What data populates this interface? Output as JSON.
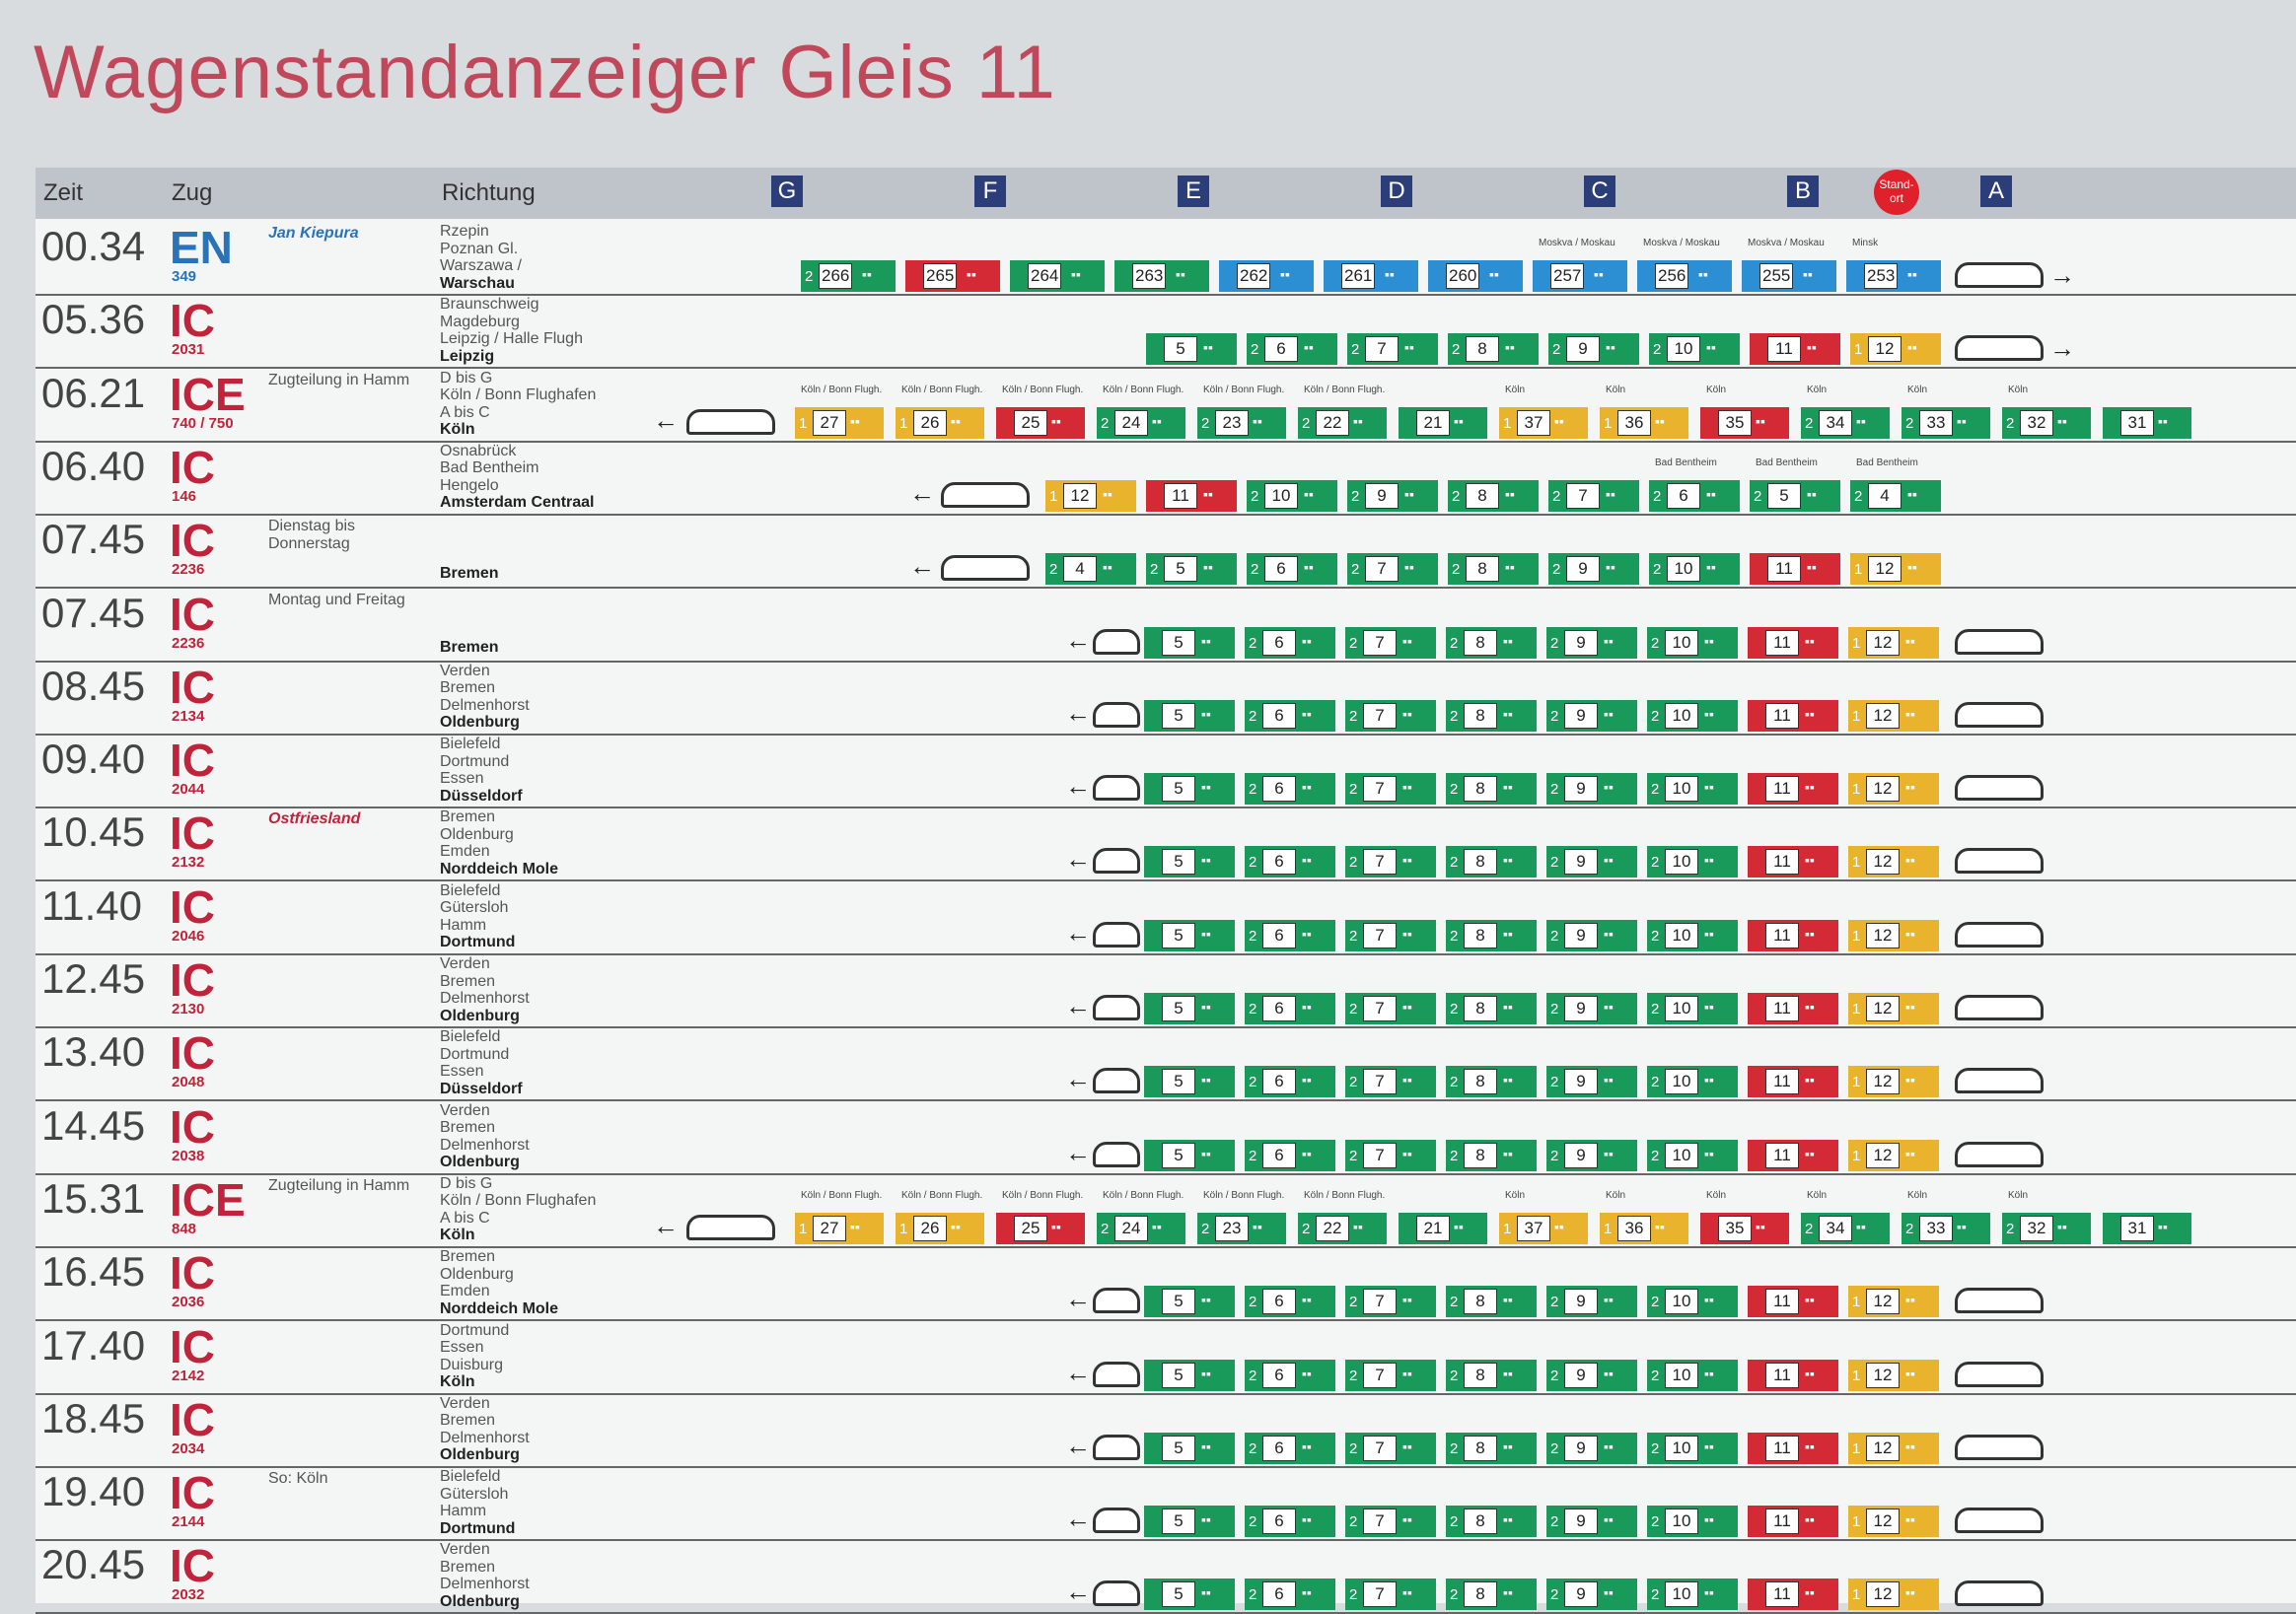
{
  "title": "Wagenstandanzeiger Gleis 11",
  "header": {
    "zeit": "Zeit",
    "zug": "Zug",
    "richtung": "Richtung",
    "standort": "Stand-ort"
  },
  "sectors": [
    "G",
    "F",
    "E",
    "D",
    "C",
    "B",
    "A"
  ],
  "colors": {
    "green": "#1a9a5a",
    "red": "#d42a35",
    "yellow": "#e9b32e",
    "blue": "#2c8ed3",
    "brand": "#c0233a"
  },
  "rows": [
    {
      "time": "00.34",
      "type": "EN",
      "num": "349",
      "note": "Jan Kiepura",
      "note_style": "italic",
      "stops": [
        "Rzepin",
        "Poznan Gl.",
        "Warszawa /",
        "Warschau"
      ],
      "dir": "right",
      "cars": [
        [
          "266",
          "g",
          "2",
          ""
        ],
        [
          "265",
          "r",
          "",
          ""
        ],
        [
          "264",
          "g",
          "",
          ""
        ],
        [
          "263",
          "g",
          "",
          ""
        ],
        [
          "262",
          "b",
          "",
          ""
        ],
        [
          "261",
          "b",
          "",
          ""
        ],
        [
          "260",
          "b",
          "",
          ""
        ],
        [
          "257",
          "b",
          "",
          "Moskva / Moskau"
        ],
        [
          "256",
          "b",
          "",
          "Moskva / Moskau"
        ],
        [
          "255",
          "b",
          "",
          "Moskva / Moskau"
        ],
        [
          "253",
          "b",
          "",
          "Minsk"
        ]
      ]
    },
    {
      "time": "05.36",
      "type": "IC",
      "num": "2031",
      "note": "",
      "stops": [
        "Braunschweig",
        "Magdeburg",
        "Leipzig / Halle Flugh",
        "Leipzig"
      ],
      "dir": "right",
      "cars": [
        [
          "5",
          "g",
          "",
          ""
        ],
        [
          "6",
          "g",
          "2",
          ""
        ],
        [
          "7",
          "g",
          "2",
          ""
        ],
        [
          "8",
          "g",
          "2",
          ""
        ],
        [
          "9",
          "g",
          "2",
          ""
        ],
        [
          "10",
          "g",
          "2",
          ""
        ],
        [
          "11",
          "r",
          "",
          ""
        ],
        [
          "12",
          "y",
          "1",
          ""
        ]
      ]
    },
    {
      "time": "06.21",
      "type": "ICE",
      "num": "740 / 750",
      "note": "Zugteilung in Hamm",
      "stops": [
        "D bis G",
        "Köln / Bonn Flughafen",
        "A bis C",
        "Köln"
      ],
      "dir": "left",
      "cars": [
        [
          "27",
          "y",
          "1",
          "Köln / Bonn Flugh."
        ],
        [
          "26",
          "y",
          "1",
          "Köln / Bonn Flugh."
        ],
        [
          "25",
          "r",
          "",
          "Köln / Bonn Flugh."
        ],
        [
          "24",
          "g",
          "2",
          "Köln / Bonn Flugh."
        ],
        [
          "23",
          "g",
          "2",
          "Köln / Bonn Flugh."
        ],
        [
          "22",
          "g",
          "2",
          "Köln / Bonn Flugh."
        ],
        [
          "21",
          "g",
          "",
          ""
        ],
        [
          "37",
          "y",
          "1",
          "Köln"
        ],
        [
          "36",
          "y",
          "1",
          "Köln"
        ],
        [
          "35",
          "r",
          "",
          "Köln"
        ],
        [
          "34",
          "g",
          "2",
          "Köln"
        ],
        [
          "33",
          "g",
          "2",
          "Köln"
        ],
        [
          "32",
          "g",
          "2",
          "Köln"
        ],
        [
          "31",
          "g",
          "",
          ""
        ]
      ]
    },
    {
      "time": "06.40",
      "type": "IC",
      "num": "146",
      "note": "",
      "stops": [
        "Osnabrück",
        "Bad Bentheim",
        "Hengelo",
        "Amsterdam Centraal"
      ],
      "dir": "left",
      "cars": [
        [
          "12",
          "y",
          "1",
          ""
        ],
        [
          "11",
          "r",
          "",
          ""
        ],
        [
          "10",
          "g",
          "2",
          ""
        ],
        [
          "9",
          "g",
          "2",
          ""
        ],
        [
          "8",
          "g",
          "2",
          ""
        ],
        [
          "7",
          "g",
          "2",
          ""
        ],
        [
          "6",
          "g",
          "2",
          "Bad Bentheim"
        ],
        [
          "5",
          "g",
          "2",
          "Bad Bentheim"
        ],
        [
          "4",
          "g",
          "2",
          "Bad Bentheim"
        ]
      ]
    },
    {
      "time": "07.45",
      "type": "IC",
      "num": "2236",
      "note": "Dienstag bis Donnerstag",
      "stops": [
        "Bremen"
      ],
      "dir": "left",
      "cars": [
        [
          "4",
          "g",
          "2",
          ""
        ],
        [
          "5",
          "g",
          "2",
          ""
        ],
        [
          "6",
          "g",
          "2",
          ""
        ],
        [
          "7",
          "g",
          "2",
          ""
        ],
        [
          "8",
          "g",
          "2",
          ""
        ],
        [
          "9",
          "g",
          "2",
          ""
        ],
        [
          "10",
          "g",
          "2",
          ""
        ],
        [
          "11",
          "r",
          "",
          ""
        ],
        [
          "12",
          "y",
          "1",
          ""
        ]
      ]
    },
    {
      "time": "07.45",
      "type": "IC",
      "num": "2236",
      "note": "Montag und Freitag",
      "stops": [
        "Bremen"
      ],
      "dir": "left",
      "cars": [
        [
          "5",
          "g",
          "",
          ""
        ],
        [
          "6",
          "g",
          "2",
          ""
        ],
        [
          "7",
          "g",
          "2",
          ""
        ],
        [
          "8",
          "g",
          "2",
          ""
        ],
        [
          "9",
          "g",
          "2",
          ""
        ],
        [
          "10",
          "g",
          "2",
          ""
        ],
        [
          "11",
          "r",
          "",
          ""
        ],
        [
          "12",
          "y",
          "1",
          ""
        ]
      ]
    },
    {
      "time": "08.45",
      "type": "IC",
      "num": "2134",
      "note": "",
      "stops": [
        "Verden",
        "Bremen",
        "Delmenhorst",
        "Oldenburg"
      ],
      "dir": "left",
      "cars": [
        [
          "5",
          "g",
          "",
          ""
        ],
        [
          "6",
          "g",
          "2",
          ""
        ],
        [
          "7",
          "g",
          "2",
          ""
        ],
        [
          "8",
          "g",
          "2",
          ""
        ],
        [
          "9",
          "g",
          "2",
          ""
        ],
        [
          "10",
          "g",
          "2",
          ""
        ],
        [
          "11",
          "r",
          "",
          ""
        ],
        [
          "12",
          "y",
          "1",
          ""
        ]
      ]
    },
    {
      "time": "09.40",
      "type": "IC",
      "num": "2044",
      "note": "",
      "stops": [
        "Bielefeld",
        "Dortmund",
        "Essen",
        "Düsseldorf"
      ],
      "dir": "left",
      "cars": [
        [
          "5",
          "g",
          "",
          ""
        ],
        [
          "6",
          "g",
          "2",
          ""
        ],
        [
          "7",
          "g",
          "2",
          ""
        ],
        [
          "8",
          "g",
          "2",
          ""
        ],
        [
          "9",
          "g",
          "2",
          ""
        ],
        [
          "10",
          "g",
          "2",
          ""
        ],
        [
          "11",
          "r",
          "",
          ""
        ],
        [
          "12",
          "y",
          "1",
          ""
        ]
      ]
    },
    {
      "time": "10.45",
      "type": "IC",
      "num": "2132",
      "note": "Ostfriesland",
      "note_style": "red",
      "stops": [
        "Bremen",
        "Oldenburg",
        "Emden",
        "Norddeich Mole"
      ],
      "dir": "left",
      "cars": [
        [
          "5",
          "g",
          "",
          ""
        ],
        [
          "6",
          "g",
          "2",
          ""
        ],
        [
          "7",
          "g",
          "2",
          ""
        ],
        [
          "8",
          "g",
          "2",
          ""
        ],
        [
          "9",
          "g",
          "2",
          ""
        ],
        [
          "10",
          "g",
          "2",
          ""
        ],
        [
          "11",
          "r",
          "",
          ""
        ],
        [
          "12",
          "y",
          "1",
          ""
        ]
      ]
    },
    {
      "time": "11.40",
      "type": "IC",
      "num": "2046",
      "note": "",
      "stops": [
        "Bielefeld",
        "Gütersloh",
        "Hamm",
        "Dortmund"
      ],
      "dir": "left",
      "cars": [
        [
          "5",
          "g",
          "",
          ""
        ],
        [
          "6",
          "g",
          "2",
          ""
        ],
        [
          "7",
          "g",
          "2",
          ""
        ],
        [
          "8",
          "g",
          "2",
          ""
        ],
        [
          "9",
          "g",
          "2",
          ""
        ],
        [
          "10",
          "g",
          "2",
          ""
        ],
        [
          "11",
          "r",
          "",
          ""
        ],
        [
          "12",
          "y",
          "1",
          ""
        ]
      ]
    },
    {
      "time": "12.45",
      "type": "IC",
      "num": "2130",
      "note": "",
      "stops": [
        "Verden",
        "Bremen",
        "Delmenhorst",
        "Oldenburg"
      ],
      "dir": "left",
      "cars": [
        [
          "5",
          "g",
          "",
          ""
        ],
        [
          "6",
          "g",
          "2",
          ""
        ],
        [
          "7",
          "g",
          "2",
          ""
        ],
        [
          "8",
          "g",
          "2",
          ""
        ],
        [
          "9",
          "g",
          "2",
          ""
        ],
        [
          "10",
          "g",
          "2",
          ""
        ],
        [
          "11",
          "r",
          "",
          ""
        ],
        [
          "12",
          "y",
          "1",
          ""
        ]
      ]
    },
    {
      "time": "13.40",
      "type": "IC",
      "num": "2048",
      "note": "",
      "stops": [
        "Bielefeld",
        "Dortmund",
        "Essen",
        "Düsseldorf"
      ],
      "dir": "left",
      "cars": [
        [
          "5",
          "g",
          "",
          ""
        ],
        [
          "6",
          "g",
          "2",
          ""
        ],
        [
          "7",
          "g",
          "2",
          ""
        ],
        [
          "8",
          "g",
          "2",
          ""
        ],
        [
          "9",
          "g",
          "2",
          ""
        ],
        [
          "10",
          "g",
          "2",
          ""
        ],
        [
          "11",
          "r",
          "",
          ""
        ],
        [
          "12",
          "y",
          "1",
          ""
        ]
      ]
    },
    {
      "time": "14.45",
      "type": "IC",
      "num": "2038",
      "note": "",
      "stops": [
        "Verden",
        "Bremen",
        "Delmenhorst",
        "Oldenburg"
      ],
      "dir": "left",
      "cars": [
        [
          "5",
          "g",
          "",
          ""
        ],
        [
          "6",
          "g",
          "2",
          ""
        ],
        [
          "7",
          "g",
          "2",
          ""
        ],
        [
          "8",
          "g",
          "2",
          ""
        ],
        [
          "9",
          "g",
          "2",
          ""
        ],
        [
          "10",
          "g",
          "2",
          ""
        ],
        [
          "11",
          "r",
          "",
          ""
        ],
        [
          "12",
          "y",
          "1",
          ""
        ]
      ]
    },
    {
      "time": "15.31",
      "type": "ICE",
      "num": "848",
      "note": "Zugteilung in Hamm",
      "stops": [
        "D bis G",
        "Köln / Bonn Flughafen",
        "A bis C",
        "Köln"
      ],
      "dir": "left",
      "cars": [
        [
          "27",
          "y",
          "1",
          "Köln / Bonn Flugh."
        ],
        [
          "26",
          "y",
          "1",
          "Köln / Bonn Flugh."
        ],
        [
          "25",
          "r",
          "",
          "Köln / Bonn Flugh."
        ],
        [
          "24",
          "g",
          "2",
          "Köln / Bonn Flugh."
        ],
        [
          "23",
          "g",
          "2",
          "Köln / Bonn Flugh."
        ],
        [
          "22",
          "g",
          "2",
          "Köln / Bonn Flugh."
        ],
        [
          "21",
          "g",
          "",
          ""
        ],
        [
          "37",
          "y",
          "1",
          "Köln"
        ],
        [
          "36",
          "y",
          "1",
          "Köln"
        ],
        [
          "35",
          "r",
          "",
          "Köln"
        ],
        [
          "34",
          "g",
          "2",
          "Köln"
        ],
        [
          "33",
          "g",
          "2",
          "Köln"
        ],
        [
          "32",
          "g",
          "2",
          "Köln"
        ],
        [
          "31",
          "g",
          "",
          ""
        ]
      ]
    },
    {
      "time": "16.45",
      "type": "IC",
      "num": "2036",
      "note": "",
      "stops": [
        "Bremen",
        "Oldenburg",
        "Emden",
        "Norddeich Mole"
      ],
      "dir": "left",
      "cars": [
        [
          "5",
          "g",
          "",
          ""
        ],
        [
          "6",
          "g",
          "2",
          ""
        ],
        [
          "7",
          "g",
          "2",
          ""
        ],
        [
          "8",
          "g",
          "2",
          ""
        ],
        [
          "9",
          "g",
          "2",
          ""
        ],
        [
          "10",
          "g",
          "2",
          ""
        ],
        [
          "11",
          "r",
          "",
          ""
        ],
        [
          "12",
          "y",
          "1",
          ""
        ]
      ]
    },
    {
      "time": "17.40",
      "type": "IC",
      "num": "2142",
      "note": "",
      "stops": [
        "Dortmund",
        "Essen",
        "Duisburg",
        "Köln"
      ],
      "dir": "left",
      "cars": [
        [
          "5",
          "g",
          "",
          ""
        ],
        [
          "6",
          "g",
          "2",
          ""
        ],
        [
          "7",
          "g",
          "2",
          ""
        ],
        [
          "8",
          "g",
          "2",
          ""
        ],
        [
          "9",
          "g",
          "2",
          ""
        ],
        [
          "10",
          "g",
          "2",
          ""
        ],
        [
          "11",
          "r",
          "",
          ""
        ],
        [
          "12",
          "y",
          "1",
          ""
        ]
      ]
    },
    {
      "time": "18.45",
      "type": "IC",
      "num": "2034",
      "note": "",
      "stops": [
        "Verden",
        "Bremen",
        "Delmenhorst",
        "Oldenburg"
      ],
      "dir": "left",
      "cars": [
        [
          "5",
          "g",
          "",
          ""
        ],
        [
          "6",
          "g",
          "2",
          ""
        ],
        [
          "7",
          "g",
          "2",
          ""
        ],
        [
          "8",
          "g",
          "2",
          ""
        ],
        [
          "9",
          "g",
          "2",
          ""
        ],
        [
          "10",
          "g",
          "2",
          ""
        ],
        [
          "11",
          "r",
          "",
          ""
        ],
        [
          "12",
          "y",
          "1",
          ""
        ]
      ]
    },
    {
      "time": "19.40",
      "type": "IC",
      "num": "2144",
      "note": "So: Köln",
      "stops": [
        "Bielefeld",
        "Gütersloh",
        "Hamm",
        "Dortmund"
      ],
      "dir": "left",
      "cars": [
        [
          "5",
          "g",
          "",
          ""
        ],
        [
          "6",
          "g",
          "2",
          ""
        ],
        [
          "7",
          "g",
          "2",
          ""
        ],
        [
          "8",
          "g",
          "2",
          ""
        ],
        [
          "9",
          "g",
          "2",
          ""
        ],
        [
          "10",
          "g",
          "2",
          ""
        ],
        [
          "11",
          "r",
          "",
          ""
        ],
        [
          "12",
          "y",
          "1",
          ""
        ]
      ]
    },
    {
      "time": "20.45",
      "type": "IC",
      "num": "2032",
      "note": "",
      "stops": [
        "Verden",
        "Bremen",
        "Delmenhorst",
        "Oldenburg"
      ],
      "dir": "left",
      "cars": [
        [
          "5",
          "g",
          "",
          ""
        ],
        [
          "6",
          "g",
          "2",
          ""
        ],
        [
          "7",
          "g",
          "2",
          ""
        ],
        [
          "8",
          "g",
          "2",
          ""
        ],
        [
          "9",
          "g",
          "2",
          ""
        ],
        [
          "10",
          "g",
          "2",
          ""
        ],
        [
          "11",
          "r",
          "",
          ""
        ],
        [
          "12",
          "y",
          "1",
          ""
        ]
      ]
    }
  ]
}
